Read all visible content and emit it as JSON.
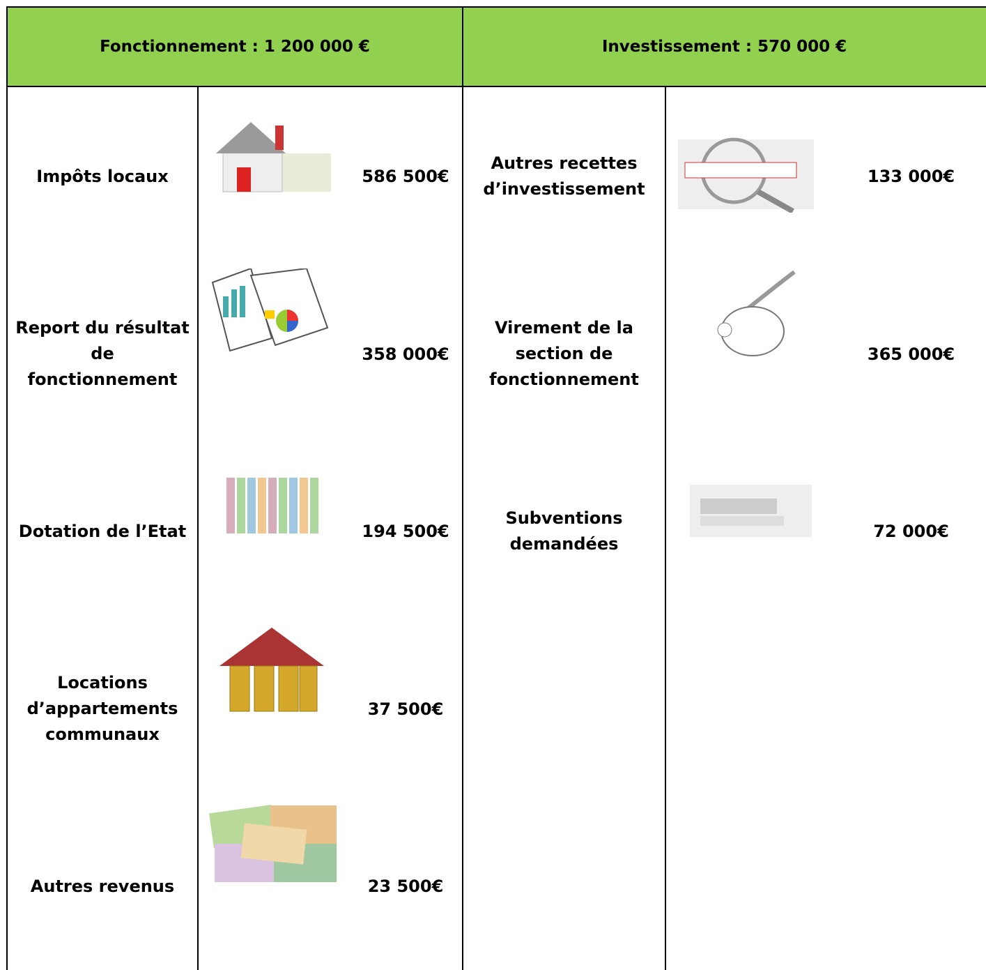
{
  "header": {
    "fonctionnement": "Fonctionnement : 1 200 000 €",
    "investissement": "Investissement : 570 000 €"
  },
  "fonctionnement": {
    "rows": [
      {
        "label": "Impôts locaux",
        "amount": "586 500€"
      },
      {
        "label": "Report du résultat de fonctionnement",
        "amount": "358 000€"
      },
      {
        "label": "Dotation de l’Etat",
        "amount": "194 500€"
      },
      {
        "label": "Locations d’appartements communaux",
        "amount": "37 500€"
      },
      {
        "label": "Autres revenus",
        "amount": "23 500€"
      }
    ]
  },
  "investissement": {
    "rows": [
      {
        "label": "Autres recettes d’investissement",
        "amount": "133 000€"
      },
      {
        "label": "Virement de la section de fonctionnement",
        "amount": "365 000€"
      },
      {
        "label": "Subventions demandées",
        "amount": "72 000€"
      }
    ]
  }
}
